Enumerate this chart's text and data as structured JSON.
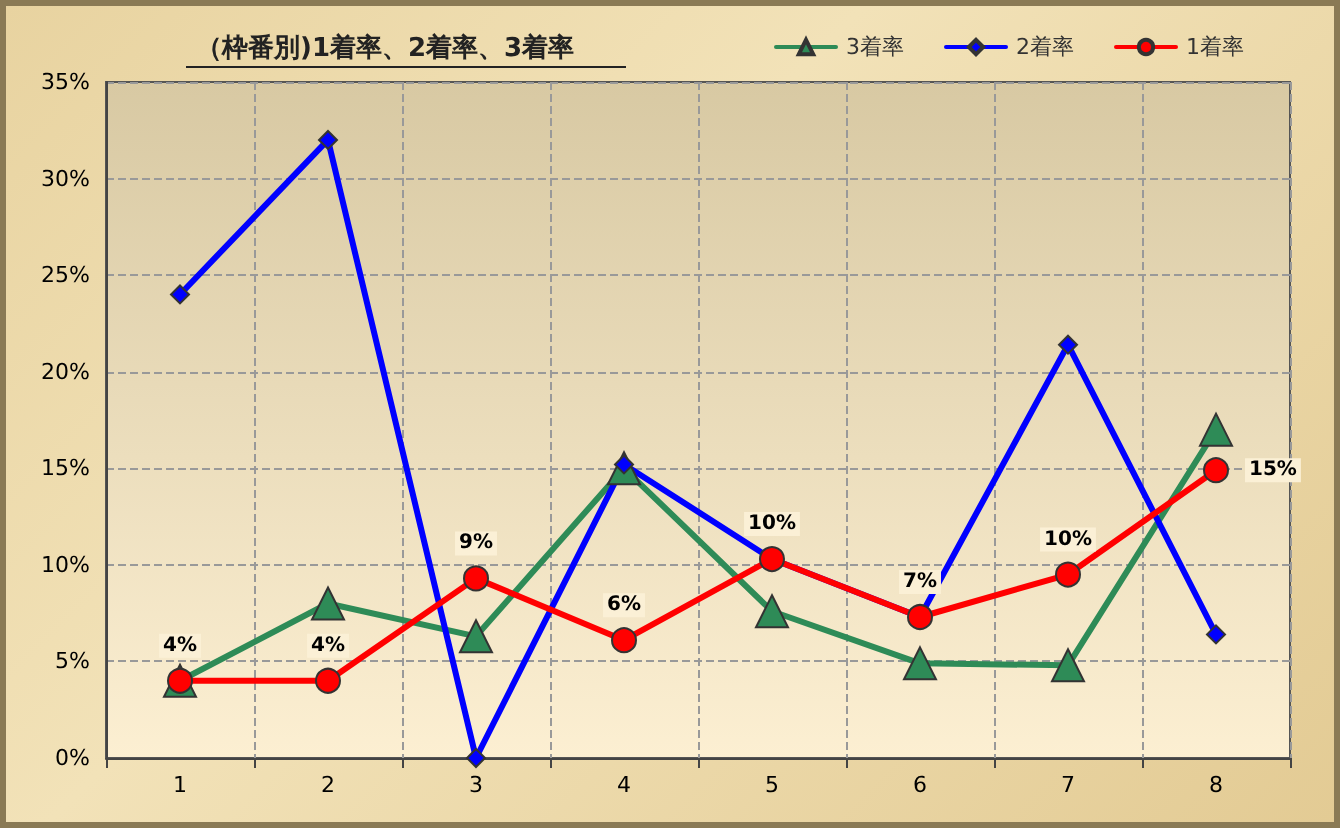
{
  "chart_data": {
    "type": "line",
    "title": "（枠番別)1着率、2着率、3着率",
    "categories": [
      "1",
      "2",
      "3",
      "4",
      "5",
      "6",
      "7",
      "8"
    ],
    "series": [
      {
        "name": "3着率",
        "color": "#2e8b57",
        "marker": "triangle",
        "values": [
          4.0,
          8.0,
          6.3,
          15.0,
          7.6,
          4.9,
          4.8,
          17.0
        ]
      },
      {
        "name": "2着率",
        "color": "#0000ff",
        "marker": "diamond",
        "values": [
          24.0,
          32.0,
          0,
          15.2,
          10.3,
          7.3,
          21.4,
          6.4
        ]
      },
      {
        "name": "1着率",
        "color": "#ff0000",
        "marker": "circle",
        "values": [
          4.0,
          4.0,
          9.3,
          6.1,
          10.3,
          7.3,
          9.5,
          14.9
        ],
        "value_labels": [
          "4%",
          "4%",
          "9%",
          "6%",
          "10%",
          "7%",
          "10%",
          "15%"
        ]
      }
    ],
    "ylim": [
      0,
      35
    ],
    "yticks": [
      {
        "value": 0,
        "label": "0%"
      },
      {
        "value": 5,
        "label": "5%"
      },
      {
        "value": 10,
        "label": "10%"
      },
      {
        "value": 15,
        "label": "15%"
      },
      {
        "value": 20,
        "label": "20%"
      },
      {
        "value": 25,
        "label": "25%"
      },
      {
        "value": 30,
        "label": "30%"
      },
      {
        "value": 35,
        "label": "35%"
      }
    ],
    "grid": true,
    "legend": "top right",
    "line_style": "solid"
  }
}
